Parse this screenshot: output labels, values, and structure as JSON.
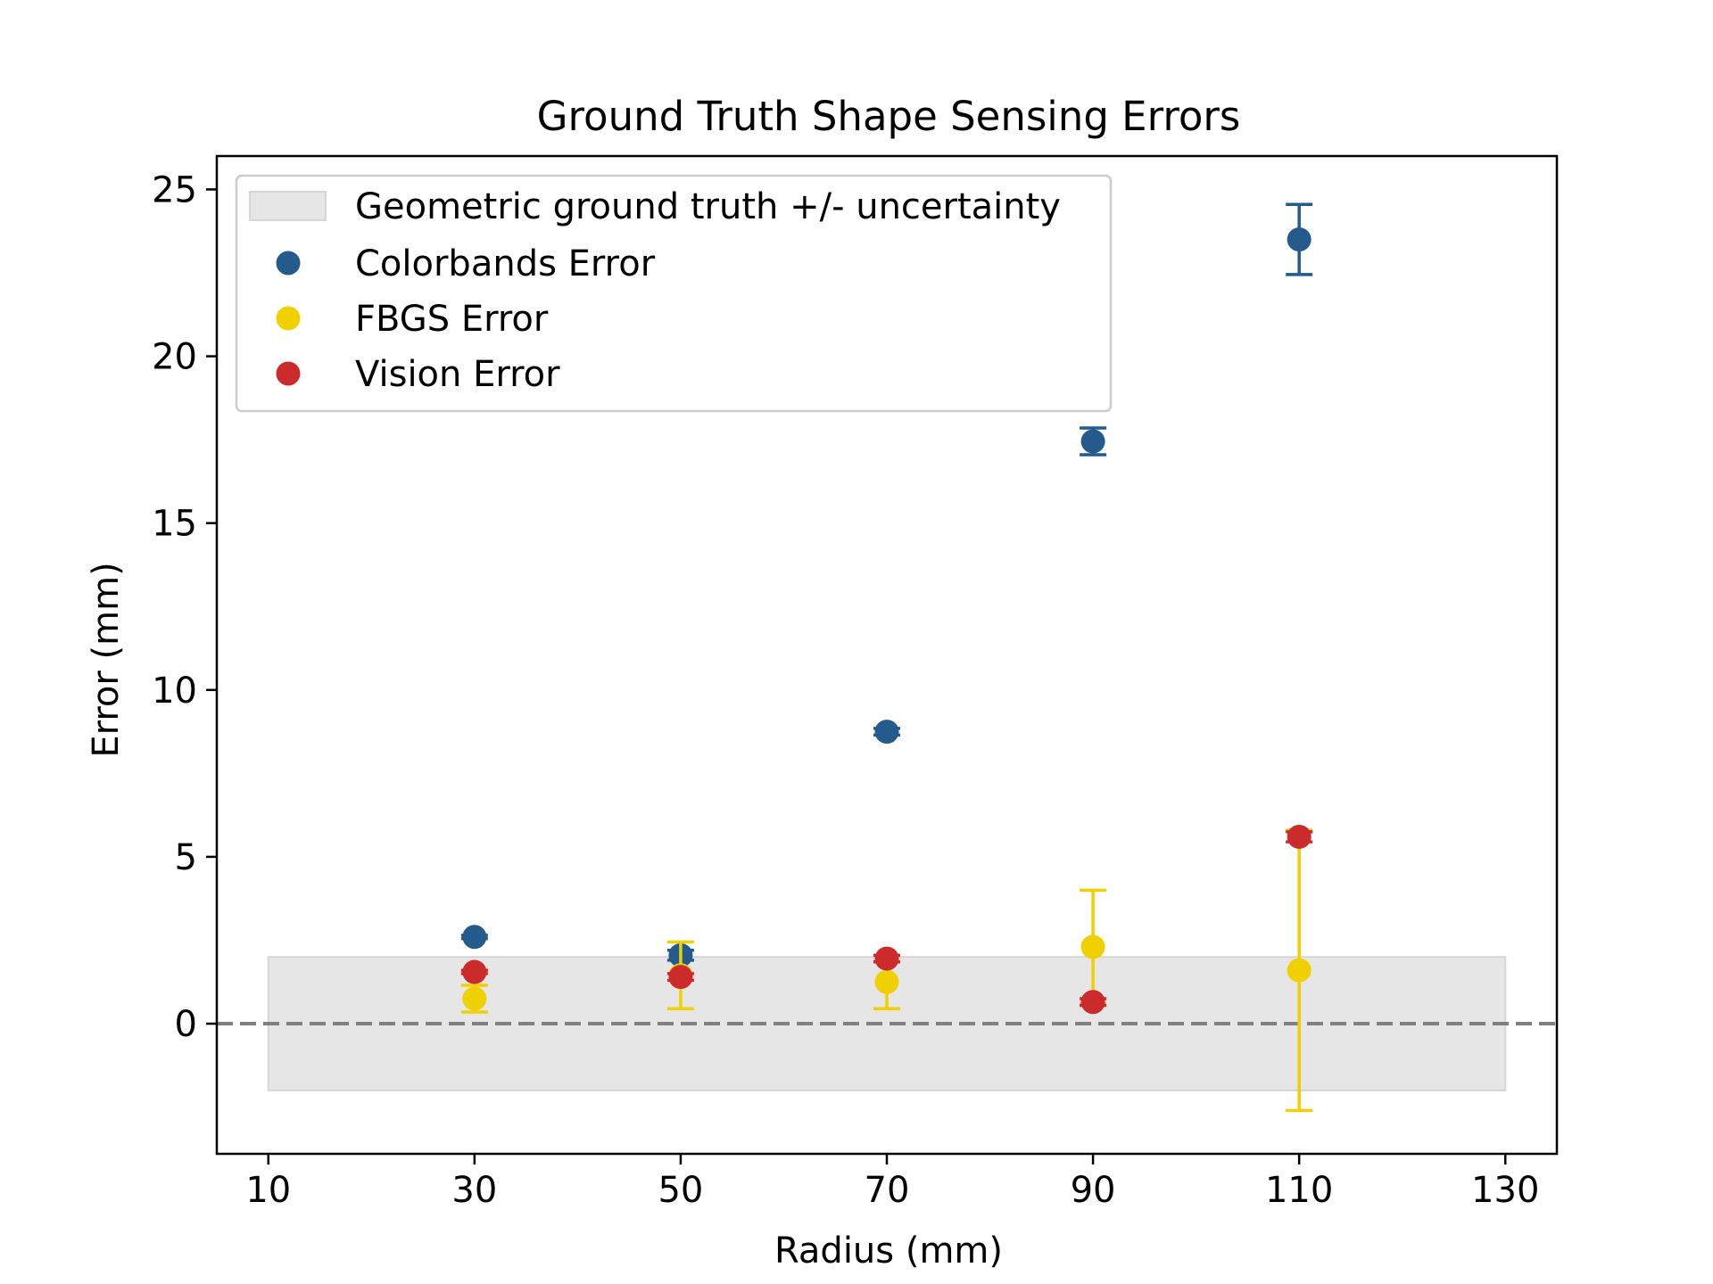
{
  "chart_data": {
    "type": "scatter",
    "title": "Ground Truth Shape Sensing Errors",
    "xlabel": "Radius (mm)",
    "ylabel": "Error (mm)",
    "xlim": [
      5,
      135
    ],
    "ylim": [
      -3.9,
      26
    ],
    "xticks": [
      "10",
      "30",
      "50",
      "70",
      "90",
      "110",
      "130"
    ],
    "yticks": [
      "0",
      "5",
      "10",
      "15",
      "20",
      "25"
    ],
    "grid": false,
    "legend_placement": "upper-left",
    "reference_line": {
      "y": 0,
      "style": "dashed",
      "color": "#808080"
    },
    "band": {
      "name": "Geometric ground truth +/- uncertainty",
      "x": [
        10,
        130
      ],
      "y": [
        -2,
        2
      ],
      "color": "#e6e6e6"
    },
    "series": [
      {
        "name": "Colorbands Error",
        "color": "#245a8c",
        "x": [
          30,
          50,
          70,
          90,
          110
        ],
        "y": [
          2.6,
          2.05,
          8.75,
          17.45,
          23.5
        ],
        "err": [
          0.05,
          0.15,
          0.1,
          0.4,
          1.05
        ]
      },
      {
        "name": "FBGS Error",
        "color": "#f0d000",
        "x": [
          30,
          50,
          70,
          90,
          110
        ],
        "y": [
          0.75,
          1.45,
          1.25,
          2.3,
          1.6
        ],
        "err": [
          0.4,
          1.0,
          0.8,
          1.7,
          4.2
        ]
      },
      {
        "name": "Vision Error",
        "color": "#cc2b2b",
        "x": [
          30,
          50,
          70,
          90,
          110
        ],
        "y": [
          1.55,
          1.4,
          1.95,
          0.65,
          5.6
        ],
        "err": [
          0.05,
          0.1,
          0.1,
          0.1,
          0.15
        ]
      }
    ]
  }
}
